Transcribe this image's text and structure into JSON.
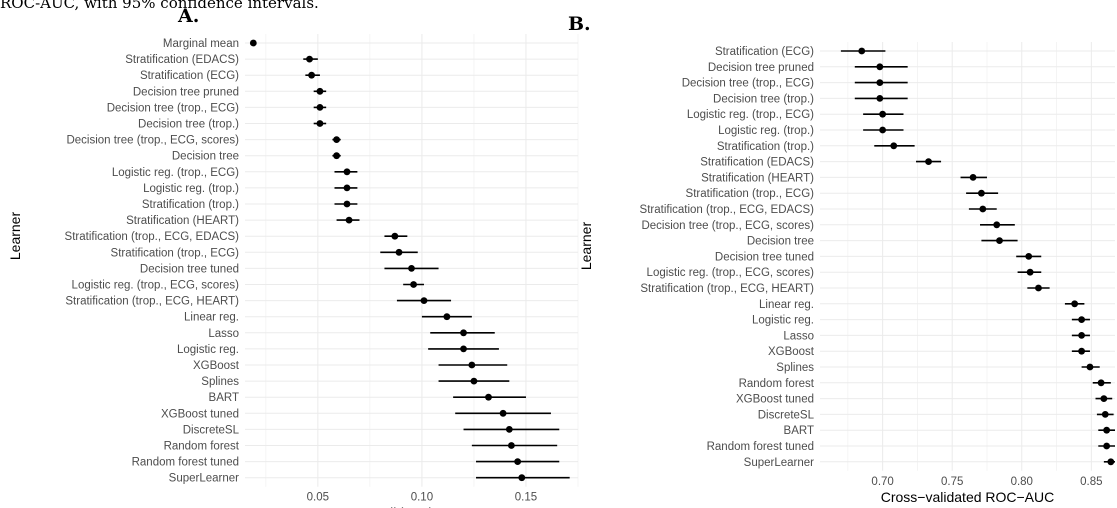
{
  "caption": "ROC-AUC, with 95% confidence intervals.",
  "chart_data": [
    {
      "type": "scatter",
      "panel_label": "A.",
      "xlabel": "Cross−validated PR−AUC",
      "ylabel": "Learner",
      "xlim": [
        0.015,
        0.175
      ],
      "xticks": [
        0.05,
        0.1,
        0.15
      ],
      "xtick_labels": [
        "0.05",
        "0.10",
        "0.15"
      ],
      "grid": true,
      "categories": [
        "Marginal mean",
        "Stratification (EDACS)",
        "Stratification (ECG)",
        "Decision tree pruned",
        "Decision tree (trop., ECG)",
        "Decision tree (trop.)",
        "Decision tree (trop., ECG, scores)",
        "Decision tree",
        "Logistic reg. (trop., ECG)",
        "Logistic reg. (trop.)",
        "Stratification (trop.)",
        "Stratification (HEART)",
        "Stratification (trop., ECG, EDACS)",
        "Stratification (trop., ECG)",
        "Decision tree tuned",
        "Logistic reg. (trop., ECG, scores)",
        "Stratification (trop., ECG, HEART)",
        "Linear reg.",
        "Lasso",
        "Logistic reg.",
        "XGBoost",
        "Splines",
        "BART",
        "XGBoost tuned",
        "DiscreteSL",
        "Random forest",
        "Random forest tuned",
        "SuperLearner"
      ],
      "estimate": [
        0.019,
        0.046,
        0.047,
        0.051,
        0.051,
        0.051,
        0.059,
        0.059,
        0.064,
        0.064,
        0.064,
        0.065,
        0.087,
        0.089,
        0.095,
        0.096,
        0.101,
        0.112,
        0.12,
        0.12,
        0.124,
        0.125,
        0.132,
        0.139,
        0.142,
        0.143,
        0.146,
        0.148
      ],
      "lower": [
        0.018,
        0.043,
        0.044,
        0.048,
        0.048,
        0.048,
        0.057,
        0.057,
        0.058,
        0.058,
        0.058,
        0.059,
        0.082,
        0.08,
        0.082,
        0.091,
        0.088,
        0.1,
        0.104,
        0.103,
        0.108,
        0.108,
        0.115,
        0.116,
        0.12,
        0.124,
        0.126,
        0.126
      ],
      "upper": [
        0.02,
        0.05,
        0.051,
        0.054,
        0.054,
        0.054,
        0.061,
        0.061,
        0.069,
        0.069,
        0.069,
        0.07,
        0.093,
        0.098,
        0.108,
        0.101,
        0.114,
        0.124,
        0.135,
        0.137,
        0.141,
        0.142,
        0.15,
        0.162,
        0.166,
        0.165,
        0.166,
        0.171
      ]
    },
    {
      "type": "scatter",
      "panel_label": "B.",
      "xlabel": "Cross−validated ROC−AUC",
      "ylabel": "Learner",
      "xlim": [
        0.655,
        0.867
      ],
      "xticks": [
        0.7,
        0.75,
        0.8,
        0.85
      ],
      "xtick_labels": [
        "0.70",
        "0.75",
        "0.80",
        "0.85"
      ],
      "grid": true,
      "categories": [
        "Stratification (ECG)",
        "Decision tree pruned",
        "Decision tree (trop., ECG)",
        "Decision tree (trop.)",
        "Logistic reg. (trop., ECG)",
        "Logistic reg. (trop.)",
        "Stratification (trop.)",
        "Stratification (EDACS)",
        "Stratification (HEART)",
        "Stratification (trop., ECG)",
        "Stratification (trop., ECG, EDACS)",
        "Decision tree (trop., ECG, scores)",
        "Decision tree",
        "Decision tree tuned",
        "Logistic reg. (trop., ECG, scores)",
        "Stratification (trop., ECG, HEART)",
        "Linear reg.",
        "Logistic reg.",
        "Lasso",
        "XGBoost",
        "Splines",
        "Random forest",
        "XGBoost tuned",
        "DiscreteSL",
        "BART",
        "Random forest tuned",
        "SuperLearner"
      ],
      "estimate": [
        0.685,
        0.698,
        0.698,
        0.698,
        0.7,
        0.7,
        0.708,
        0.733,
        0.765,
        0.771,
        0.772,
        0.782,
        0.784,
        0.805,
        0.806,
        0.812,
        0.838,
        0.843,
        0.843,
        0.843,
        0.849,
        0.857,
        0.859,
        0.86,
        0.861,
        0.861,
        0.864
      ],
      "lower": [
        0.67,
        0.68,
        0.68,
        0.68,
        0.686,
        0.686,
        0.694,
        0.724,
        0.756,
        0.76,
        0.762,
        0.77,
        0.771,
        0.796,
        0.797,
        0.804,
        0.831,
        0.836,
        0.836,
        0.836,
        0.843,
        0.851,
        0.853,
        0.854,
        0.855,
        0.855,
        0.859
      ],
      "upper": [
        0.702,
        0.718,
        0.718,
        0.718,
        0.715,
        0.715,
        0.723,
        0.742,
        0.775,
        0.783,
        0.782,
        0.795,
        0.797,
        0.814,
        0.814,
        0.82,
        0.845,
        0.849,
        0.849,
        0.849,
        0.856,
        0.864,
        0.865,
        0.866,
        0.867,
        0.867,
        0.867
      ]
    }
  ]
}
